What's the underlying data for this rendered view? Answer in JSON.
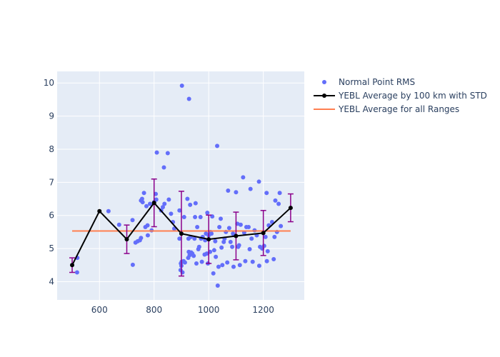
{
  "chart_data": {
    "type": "scatter",
    "xlim": [
      445,
      1350
    ],
    "ylim": [
      3.45,
      10.35
    ],
    "x_ticks": [
      600,
      800,
      1000,
      1200
    ],
    "y_ticks": [
      4,
      5,
      6,
      7,
      8,
      9,
      10
    ],
    "x_tick_labels": [
      "600",
      "800",
      "1000",
      "1200"
    ],
    "y_tick_labels": [
      "4",
      "5",
      "6",
      "7",
      "8",
      "9",
      "10"
    ],
    "grid": true,
    "legend_position": "top-right outside",
    "colors": {
      "plot_bg": "#e5ecf6",
      "grid": "#ffffff",
      "scatter": "#636efa",
      "std_line": "#000000",
      "error_bar": "#8b008b",
      "all_avg": "#ff7f50"
    },
    "series": [
      {
        "name": "Normal Point RMS",
        "kind": "markers",
        "points": [
          [
            518,
            4.28
          ],
          [
            519,
            4.72
          ],
          [
            633,
            6.13
          ],
          [
            672,
            5.72
          ],
          [
            721,
            5.86
          ],
          [
            722,
            4.51
          ],
          [
            732,
            5.18
          ],
          [
            740,
            5.22
          ],
          [
            748,
            5.25
          ],
          [
            752,
            5.32
          ],
          [
            752,
            6.45
          ],
          [
            756,
            6.5
          ],
          [
            758,
            6.4
          ],
          [
            763,
            6.68
          ],
          [
            768,
            5.65
          ],
          [
            772,
            6.28
          ],
          [
            776,
            5.7
          ],
          [
            777,
            5.4
          ],
          [
            785,
            6.35
          ],
          [
            791,
            5.55
          ],
          [
            800,
            6.4
          ],
          [
            806,
            6.65
          ],
          [
            808,
            6.48
          ],
          [
            810,
            7.9
          ],
          [
            826,
            6.15
          ],
          [
            832,
            6.25
          ],
          [
            836,
            7.45
          ],
          [
            838,
            6.35
          ],
          [
            850,
            7.88
          ],
          [
            854,
            6.48
          ],
          [
            862,
            6.05
          ],
          [
            869,
            5.8
          ],
          [
            874,
            5.6
          ],
          [
            893,
            5.3
          ],
          [
            893,
            6.15
          ],
          [
            897,
            4.35
          ],
          [
            898,
            4.55
          ],
          [
            900,
            4.48
          ],
          [
            901,
            4.6
          ],
          [
            902,
            9.92
          ],
          [
            904,
            4.28
          ],
          [
            908,
            4.62
          ],
          [
            910,
            5.95
          ],
          [
            913,
            4.58
          ],
          [
            922,
            6.5
          ],
          [
            925,
            4.72
          ],
          [
            926,
            5.3
          ],
          [
            927,
            4.9
          ],
          [
            928,
            9.52
          ],
          [
            930,
            4.8
          ],
          [
            932,
            6.32
          ],
          [
            934,
            5.35
          ],
          [
            936,
            4.88
          ],
          [
            940,
            4.85
          ],
          [
            945,
            4.78
          ],
          [
            948,
            5.3
          ],
          [
            950,
            5.95
          ],
          [
            952,
            6.37
          ],
          [
            955,
            4.55
          ],
          [
            958,
            5.65
          ],
          [
            962,
            4.98
          ],
          [
            965,
            5.05
          ],
          [
            970,
            5.95
          ],
          [
            972,
            5.3
          ],
          [
            975,
            4.6
          ],
          [
            978,
            5.35
          ],
          [
            985,
            4.82
          ],
          [
            987,
            5.25
          ],
          [
            990,
            5.45
          ],
          [
            993,
            4.85
          ],
          [
            995,
            6.08
          ],
          [
            997,
            4.55
          ],
          [
            1000,
            5.4
          ],
          [
            1005,
            4.9
          ],
          [
            1007,
            5.5
          ],
          [
            1010,
            5.45
          ],
          [
            1013,
            5.97
          ],
          [
            1017,
            4.25
          ],
          [
            1020,
            4.95
          ],
          [
            1024,
            5.22
          ],
          [
            1026,
            4.75
          ],
          [
            1031,
            8.1
          ],
          [
            1033,
            3.88
          ],
          [
            1036,
            4.45
          ],
          [
            1039,
            5.65
          ],
          [
            1044,
            5.9
          ],
          [
            1047,
            5.03
          ],
          [
            1050,
            4.5
          ],
          [
            1055,
            5.2
          ],
          [
            1058,
            5.3
          ],
          [
            1063,
            5.5
          ],
          [
            1068,
            4.58
          ],
          [
            1071,
            6.75
          ],
          [
            1075,
            5.62
          ],
          [
            1080,
            5.2
          ],
          [
            1086,
            5.05
          ],
          [
            1089,
            5.45
          ],
          [
            1091,
            4.45
          ],
          [
            1095,
            5.4
          ],
          [
            1100,
            6.7
          ],
          [
            1105,
            5.75
          ],
          [
            1108,
            5.05
          ],
          [
            1111,
            5.1
          ],
          [
            1114,
            4.5
          ],
          [
            1117,
            5.72
          ],
          [
            1126,
            7.15
          ],
          [
            1130,
            5.48
          ],
          [
            1134,
            4.62
          ],
          [
            1138,
            5.65
          ],
          [
            1146,
            5.65
          ],
          [
            1150,
            4.98
          ],
          [
            1153,
            6.8
          ],
          [
            1157,
            5.3
          ],
          [
            1161,
            4.6
          ],
          [
            1168,
            5.55
          ],
          [
            1176,
            5.4
          ],
          [
            1184,
            7.02
          ],
          [
            1185,
            4.48
          ],
          [
            1188,
            5.05
          ],
          [
            1196,
            5.0
          ],
          [
            1203,
            5.08
          ],
          [
            1208,
            5.35
          ],
          [
            1212,
            6.68
          ],
          [
            1213,
            4.62
          ],
          [
            1216,
            4.92
          ],
          [
            1220,
            5.7
          ],
          [
            1232,
            5.8
          ],
          [
            1238,
            4.68
          ],
          [
            1241,
            5.35
          ],
          [
            1244,
            6.45
          ],
          [
            1250,
            5.5
          ],
          [
            1256,
            6.35
          ],
          [
            1260,
            6.68
          ],
          [
            1264,
            5.68
          ]
        ]
      },
      {
        "name": "YEBL Average by 100 km with STD",
        "kind": "lines+markers+error_y",
        "x": [
          500,
          600,
          700,
          800,
          900,
          1000,
          1100,
          1200,
          1300
        ],
        "y": [
          4.5,
          6.13,
          5.28,
          6.38,
          5.45,
          5.28,
          5.38,
          5.47,
          6.23
        ],
        "error": [
          0.22,
          null,
          0.43,
          0.72,
          1.28,
          0.73,
          0.72,
          0.68,
          0.42
        ]
      },
      {
        "name": "YEBL Average for all Ranges",
        "kind": "line",
        "x": [
          500,
          1300
        ],
        "y": [
          5.53,
          5.53
        ]
      }
    ]
  }
}
